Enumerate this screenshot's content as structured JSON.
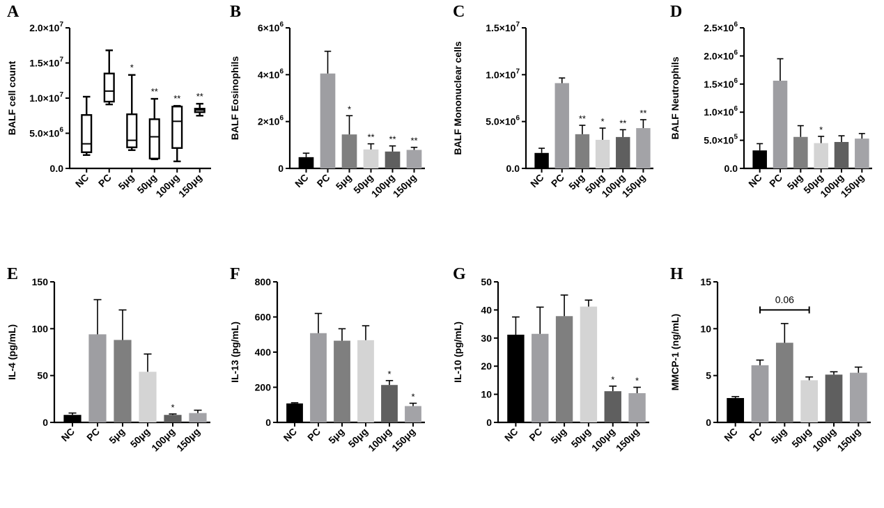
{
  "chart_data": [
    {
      "panel": "A",
      "type": "box",
      "ylabel": "BALF cell count",
      "ylim": [
        0,
        20000000
      ],
      "yticks": [
        0,
        5000000,
        10000000,
        15000000,
        20000000
      ],
      "ytick_labels": [
        {
          "mant": "0.0",
          "exp": ""
        },
        {
          "mant": "5.0×10",
          "exp": "6"
        },
        {
          "mant": "1.0×10",
          "exp": "7"
        },
        {
          "mant": "1.5×10",
          "exp": "7"
        },
        {
          "mant": "2.0×10",
          "exp": "7"
        }
      ],
      "categories": [
        "NC",
        "PC",
        "5μg",
        "50μg",
        "100μg",
        "150μg"
      ],
      "boxes": [
        {
          "min": 1900000,
          "q1": 2300000,
          "median": 3500000,
          "q3": 7600000,
          "max": 10200000
        },
        {
          "min": 9100000,
          "q1": 9500000,
          "median": 11000000,
          "q3": 13500000,
          "max": 16800000
        },
        {
          "min": 2600000,
          "q1": 3000000,
          "median": 4000000,
          "q3": 7700000,
          "max": 13300000
        },
        {
          "min": 1300000,
          "q1": 1400000,
          "median": 4500000,
          "q3": 7000000,
          "max": 9900000
        },
        {
          "min": 1000000,
          "q1": 2900000,
          "median": 6700000,
          "q3": 8800000,
          "max": 8900000
        },
        {
          "min": 7500000,
          "q1": 8000000,
          "median": 8300000,
          "q3": 8500000,
          "max": 9200000
        }
      ],
      "significance": [
        "",
        "",
        "*",
        "**",
        "**",
        "**"
      ]
    },
    {
      "panel": "B",
      "type": "bar",
      "ylabel": "BALF Eosinophils",
      "ylim": [
        0,
        6000000
      ],
      "yticks": [
        0,
        2000000,
        4000000,
        6000000
      ],
      "ytick_labels": [
        {
          "mant": "0",
          "exp": ""
        },
        {
          "mant": "2×10",
          "exp": "6"
        },
        {
          "mant": "4×10",
          "exp": "6"
        },
        {
          "mant": "6×10",
          "exp": "6"
        }
      ],
      "categories": [
        "NC",
        "PC",
        "5μg",
        "50μg",
        "100μg",
        "150μg"
      ],
      "values": [
        480000,
        4050000,
        1450000,
        810000,
        720000,
        790000
      ],
      "errors": [
        170000,
        950000,
        800000,
        240000,
        240000,
        110000
      ],
      "significance": [
        "",
        "",
        "*",
        "**",
        "**",
        "**"
      ]
    },
    {
      "panel": "C",
      "type": "bar",
      "ylabel": "BALF Mononuclear cells",
      "ylim": [
        0,
        15000000
      ],
      "yticks": [
        0,
        5000000,
        10000000,
        15000000
      ],
      "ytick_labels": [
        {
          "mant": "0.0",
          "exp": ""
        },
        {
          "mant": "5.0×10",
          "exp": "6"
        },
        {
          "mant": "1.0×10",
          "exp": "7"
        },
        {
          "mant": "1.5×10",
          "exp": "7"
        }
      ],
      "categories": [
        "NC",
        "PC",
        "5μg",
        "50μg",
        "100μg",
        "150μg"
      ],
      "values": [
        1650000,
        9100000,
        3650000,
        3050000,
        3350000,
        4300000
      ],
      "errors": [
        500000,
        550000,
        950000,
        1250000,
        780000,
        900000
      ],
      "significance": [
        "",
        "",
        "**",
        "*",
        "**",
        "**"
      ]
    },
    {
      "panel": "D",
      "type": "bar",
      "ylabel": "BALF Neutrophils",
      "ylim": [
        0,
        2500000
      ],
      "yticks": [
        0,
        500000,
        1000000,
        1500000,
        2000000,
        2500000
      ],
      "ytick_labels": [
        {
          "mant": "0.0",
          "exp": ""
        },
        {
          "mant": "5.0×10",
          "exp": "5"
        },
        {
          "mant": "1.0×10",
          "exp": "6"
        },
        {
          "mant": "1.5×10",
          "exp": "6"
        },
        {
          "mant": "2.0×10",
          "exp": "6"
        },
        {
          "mant": "2.5×10",
          "exp": "6"
        }
      ],
      "categories": [
        "NC",
        "PC",
        "5μg",
        "50μg",
        "100μg",
        "150μg"
      ],
      "values": [
        320000,
        1560000,
        560000,
        450000,
        470000,
        530000
      ],
      "errors": [
        120000,
        390000,
        200000,
        120000,
        110000,
        90000
      ],
      "significance": [
        "",
        "",
        "",
        "*",
        "",
        ""
      ]
    },
    {
      "panel": "E",
      "type": "bar",
      "ylabel": "IL-4 (pg/mL)",
      "ylim": [
        0,
        150
      ],
      "yticks": [
        0,
        50,
        100,
        150
      ],
      "ytick_labels": [
        {
          "mant": "0",
          "exp": ""
        },
        {
          "mant": "50",
          "exp": ""
        },
        {
          "mant": "100",
          "exp": ""
        },
        {
          "mant": "150",
          "exp": ""
        }
      ],
      "categories": [
        "NC",
        "PC",
        "5μg",
        "50μg",
        "100μg",
        "150μg"
      ],
      "values": [
        8,
        94,
        88,
        54,
        8,
        10
      ],
      "errors": [
        2,
        37,
        32,
        19,
        1,
        3
      ],
      "significance": [
        "",
        "",
        "",
        "",
        "*",
        ""
      ]
    },
    {
      "panel": "F",
      "type": "bar",
      "ylabel": "IL-13 (pg/mL)",
      "ylim": [
        0,
        800
      ],
      "yticks": [
        0,
        200,
        400,
        600,
        800
      ],
      "ytick_labels": [
        {
          "mant": "0",
          "exp": ""
        },
        {
          "mant": "200",
          "exp": ""
        },
        {
          "mant": "400",
          "exp": ""
        },
        {
          "mant": "600",
          "exp": ""
        },
        {
          "mant": "800",
          "exp": ""
        }
      ],
      "categories": [
        "NC",
        "PC",
        "5μg",
        "50μg",
        "100μg",
        "150μg"
      ],
      "values": [
        108,
        508,
        465,
        468,
        213,
        93
      ],
      "errors": [
        4,
        112,
        68,
        82,
        25,
        16
      ],
      "significance": [
        "",
        "",
        "",
        "",
        "*",
        "*"
      ]
    },
    {
      "panel": "G",
      "type": "bar",
      "ylabel": "IL-10 (pg/mL)",
      "ylim": [
        0,
        50
      ],
      "yticks": [
        0,
        10,
        20,
        30,
        40,
        50
      ],
      "ytick_labels": [
        {
          "mant": "0",
          "exp": ""
        },
        {
          "mant": "10",
          "exp": ""
        },
        {
          "mant": "20",
          "exp": ""
        },
        {
          "mant": "30",
          "exp": ""
        },
        {
          "mant": "40",
          "exp": ""
        },
        {
          "mant": "50",
          "exp": ""
        }
      ],
      "categories": [
        "NC",
        "PC",
        "5μg",
        "50μg",
        "100μg",
        "150μg"
      ],
      "values": [
        31.2,
        31.5,
        37.8,
        41.2,
        11.1,
        10.4
      ],
      "errors": [
        6.3,
        9.5,
        7.5,
        2.3,
        1.8,
        2.1
      ],
      "significance": [
        "",
        "",
        "",
        "",
        "*",
        "*"
      ]
    },
    {
      "panel": "H",
      "type": "bar",
      "ylabel": "MMCP-1 (ng/mL)",
      "ylim": [
        0,
        15
      ],
      "yticks": [
        0,
        5,
        10,
        15
      ],
      "ytick_labels": [
        {
          "mant": "0",
          "exp": ""
        },
        {
          "mant": "5",
          "exp": ""
        },
        {
          "mant": "10",
          "exp": ""
        },
        {
          "mant": "15",
          "exp": ""
        }
      ],
      "categories": [
        "NC",
        "PC",
        "5μg",
        "50μg",
        "100μg",
        "150μg"
      ],
      "values": [
        2.6,
        6.1,
        8.5,
        4.5,
        5.1,
        5.3
      ],
      "errors": [
        0.15,
        0.55,
        2.05,
        0.35,
        0.3,
        0.6
      ],
      "significance": [
        "",
        "",
        "",
        "",
        "",
        ""
      ],
      "bracket": {
        "from": 1,
        "to": 3,
        "y": 12,
        "label": "0.06"
      }
    }
  ],
  "colors": {
    "bars": [
      "#000000",
      "#9e9ea2",
      "#7f7f7f",
      "#d4d4d4",
      "#5f5f5f",
      "#a3a3a7"
    ],
    "axis": "#000000"
  }
}
